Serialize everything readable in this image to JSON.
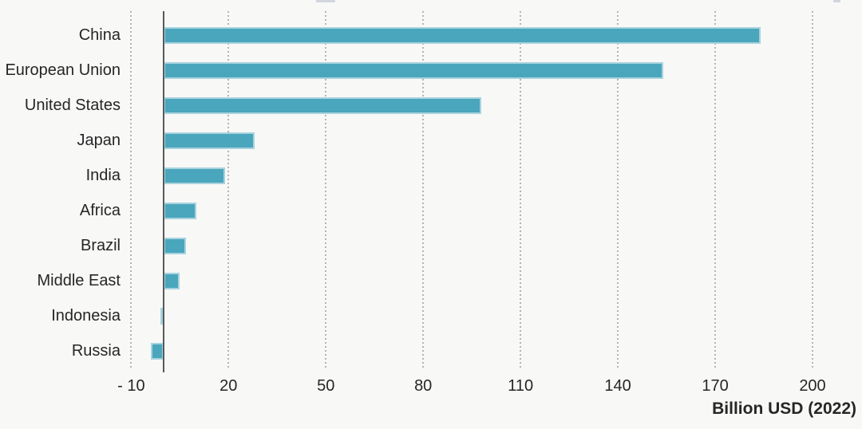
{
  "chart_data": {
    "type": "bar",
    "orientation": "horizontal",
    "title": "",
    "categories": [
      "China",
      "European Union",
      "United States",
      "Japan",
      "India",
      "Africa",
      "Brazil",
      "Middle East",
      "Indonesia",
      "Russia"
    ],
    "values": [
      184,
      154,
      98,
      28,
      19,
      10,
      7,
      5,
      -1,
      -4
    ],
    "xlabel": "Billion USD (2022)",
    "ylabel": "",
    "xlim": [
      -10,
      200
    ],
    "xticks": [
      -10,
      20,
      50,
      80,
      110,
      140,
      170,
      200
    ],
    "xtick_labels": [
      "- 10",
      "20",
      "50",
      "80",
      "110",
      "140",
      "170",
      "200"
    ],
    "grid": "vertical-dotted",
    "legend": "none",
    "colors": {
      "bar_fill": "#4aa6bc",
      "bar_border": "#a8d3de",
      "gridline": "#b4b4b4",
      "axis_line": "#58595b",
      "text": "#262626",
      "background": "#f8f8f7"
    }
  }
}
